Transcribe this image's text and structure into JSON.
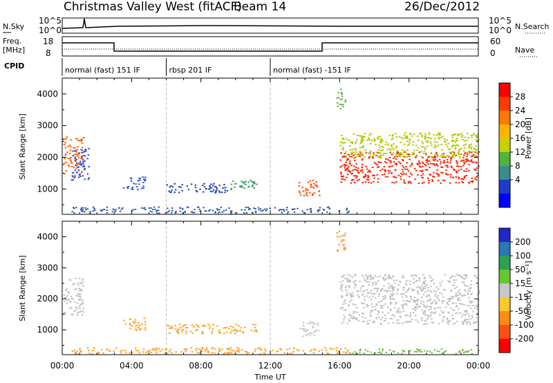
{
  "header": {
    "title": "Christmas Valley West (fitACF)",
    "beam": "Beam 14",
    "date": "26/Dec/2012"
  },
  "strip": {
    "nsky_label": "N.Sky",
    "nsky_ticks": [
      "10^5",
      "10^0"
    ],
    "nsearch_label": "N.Search",
    "nsearch_ticks": [
      "10^5",
      "10^0"
    ],
    "freq_label": "Freq.",
    "freq_unit": "[MHz]",
    "freq_ticks": [
      "18",
      "8"
    ],
    "nave_label": "Nave",
    "nave_ticks": [
      "60",
      "0"
    ],
    "cpid_label": "CPID",
    "cpid_modes": [
      {
        "start_hr": 0,
        "label": "normal (fast) 151 IF"
      },
      {
        "start_hr": 6,
        "label": "rbsp 201 IF"
      },
      {
        "start_hr": 12,
        "label": "normal (fast) -151 IF"
      }
    ]
  },
  "chart_data": [
    {
      "type": "heatmap",
      "name": "power-panel",
      "ylabel": "Slant Range [km]",
      "xlabel": "",
      "xlim": [
        0,
        24
      ],
      "ylim": [
        200,
        4500
      ],
      "yticks": [
        "1000",
        "2000",
        "3000",
        "4000"
      ],
      "colorbar": {
        "label": "Power [dB]",
        "ticks": [
          "28",
          "24",
          "20",
          "16",
          "12",
          "8",
          "4"
        ],
        "colors": [
          "#ff0000",
          "#ff3c00",
          "#ff7800",
          "#ffb400",
          "#c8d200",
          "#50b43c",
          "#3c8c8c",
          "#1e3cc8",
          "#0000ff"
        ]
      },
      "regions": [
        {
          "t0": 0.0,
          "t1": 1.2,
          "r0": 1500,
          "r1": 2700,
          "color": "#ff6000"
        },
        {
          "t0": 0.5,
          "t1": 1.5,
          "r0": 1300,
          "r1": 2300,
          "color": "#3050d0"
        },
        {
          "t0": 3.5,
          "t1": 4.8,
          "r0": 1000,
          "r1": 1400,
          "color": "#3050d0"
        },
        {
          "t0": 6.0,
          "t1": 9.5,
          "r0": 900,
          "r1": 1200,
          "color": "#2040c0"
        },
        {
          "t0": 9.3,
          "t1": 11.3,
          "r0": 1000,
          "r1": 1300,
          "color": "#40a070"
        },
        {
          "t0": 13.5,
          "t1": 14.8,
          "r0": 800,
          "r1": 1300,
          "color": "#ff5000"
        },
        {
          "t0": 16.0,
          "t1": 24.0,
          "r0": 1200,
          "r1": 2200,
          "color": "#ff2000"
        },
        {
          "t0": 16.0,
          "t1": 24.0,
          "r0": 2000,
          "r1": 2800,
          "color": "#b4c800"
        },
        {
          "t0": 15.8,
          "t1": 16.3,
          "r0": 3500,
          "r1": 4200,
          "color": "#60b040"
        },
        {
          "t0": 0.5,
          "t1": 16.5,
          "r0": 250,
          "r1": 450,
          "color": "#3060b0"
        }
      ]
    },
    {
      "type": "heatmap",
      "name": "velocity-panel",
      "ylabel": "Slant Range [km]",
      "xlabel": "Time UT",
      "xlim": [
        0,
        24
      ],
      "ylim": [
        200,
        4500
      ],
      "xticks": [
        "00:00",
        "04:00",
        "08:00",
        "12:00",
        "16:00",
        "20:00",
        "00:00"
      ],
      "yticks": [
        "1000",
        "2000",
        "3000",
        "4000"
      ],
      "colorbar": {
        "label": "Velocity [m s⁻¹]",
        "ticks": [
          "200",
          "100",
          "50",
          "15",
          "-15",
          "-50",
          "-100",
          "-200"
        ],
        "colors": [
          "#1e28c8",
          "#2878b4",
          "#2ea050",
          "#64c832",
          "#c8c8c8",
          "#ffc828",
          "#ff8c14",
          "#ff5014",
          "#ff0000"
        ]
      },
      "regions": [
        {
          "t0": 0.0,
          "t1": 1.2,
          "r0": 1500,
          "r1": 2700,
          "color": "#c0c0c0"
        },
        {
          "t0": 3.5,
          "t1": 4.8,
          "r0": 1000,
          "r1": 1400,
          "color": "#ffa020"
        },
        {
          "t0": 6.0,
          "t1": 11.3,
          "r0": 900,
          "r1": 1200,
          "color": "#ffa020"
        },
        {
          "t0": 13.5,
          "t1": 14.8,
          "r0": 800,
          "r1": 1300,
          "color": "#c8c8c8"
        },
        {
          "t0": 16.0,
          "t1": 24.0,
          "r0": 1200,
          "r1": 2800,
          "color": "#c0c0c0"
        },
        {
          "t0": 15.8,
          "t1": 16.3,
          "r0": 3500,
          "r1": 4200,
          "color": "#ff9020"
        },
        {
          "t0": 0.5,
          "t1": 16.5,
          "r0": 250,
          "r1": 450,
          "color": "#ffa020"
        },
        {
          "t0": 16.5,
          "t1": 24.0,
          "r0": 250,
          "r1": 400,
          "color": "#70c040"
        }
      ]
    }
  ]
}
